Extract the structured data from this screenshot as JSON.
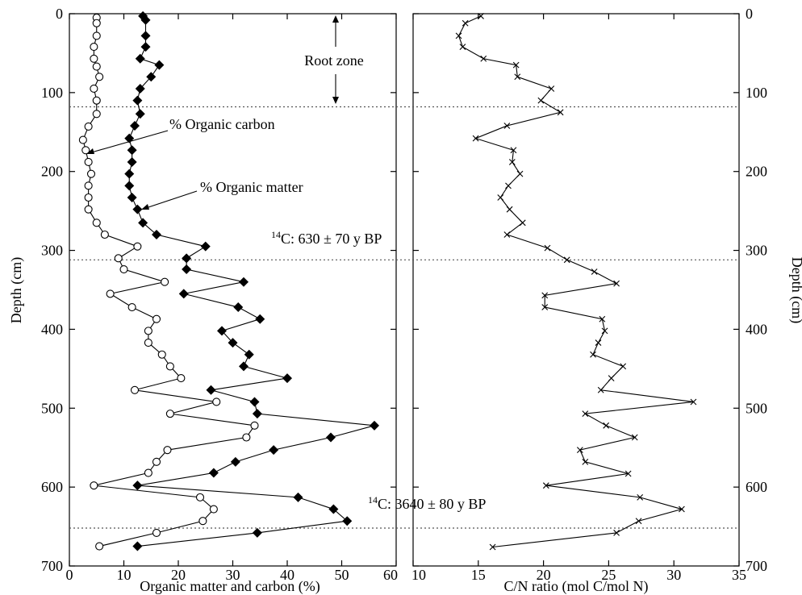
{
  "chart_data": [
    {
      "type": "line",
      "panel": "left",
      "xlabel": "Organic matter and carbon (%)",
      "ylabel": "Depth (cm)",
      "xlim": [
        0,
        60
      ],
      "ylim": [
        0,
        700
      ],
      "y_inverted": true,
      "x_ticks": [
        "0",
        "10",
        "20",
        "30",
        "40",
        "50",
        "60"
      ],
      "y_ticks": [
        "0",
        "100",
        "200",
        "300",
        "400",
        "500",
        "600",
        "700"
      ],
      "grid": false,
      "series": [
        {
          "marker": "open-circle",
          "points": [
            [
              5,
              5
            ],
            [
              5,
              12
            ],
            [
              5,
              28
            ],
            [
              4.5,
              42
            ],
            [
              4.5,
              57
            ],
            [
              5,
              67
            ],
            [
              5.5,
              80
            ],
            [
              4.5,
              95
            ],
            [
              5,
              110
            ],
            [
              5,
              127
            ],
            [
              3.5,
              143
            ],
            [
              2.5,
              160
            ],
            [
              3,
              173
            ],
            [
              3.5,
              188
            ],
            [
              4,
              203
            ],
            [
              3.5,
              218
            ],
            [
              3.5,
              233
            ],
            [
              3.5,
              248
            ],
            [
              5,
              265
            ],
            [
              6.5,
              280
            ],
            [
              12.5,
              295
            ],
            [
              9,
              310
            ],
            [
              10,
              324
            ],
            [
              17.5,
              340
            ],
            [
              7.5,
              355
            ],
            [
              11.5,
              372
            ],
            [
              16,
              387
            ],
            [
              14.5,
              402
            ],
            [
              14.5,
              417
            ],
            [
              17,
              432
            ],
            [
              18.5,
              447
            ],
            [
              20.5,
              462
            ],
            [
              12,
              477
            ],
            [
              27,
              492
            ],
            [
              18.5,
              507
            ],
            [
              34,
              522
            ],
            [
              32.5,
              537
            ],
            [
              18,
              553
            ],
            [
              16,
              568
            ],
            [
              14.5,
              582
            ],
            [
              4.5,
              598
            ],
            [
              24,
              613
            ],
            [
              26.5,
              628
            ],
            [
              24.5,
              643
            ],
            [
              16,
              658
            ],
            [
              5.5,
              675
            ]
          ]
        },
        {
          "marker": "filled-diamond",
          "points": [
            [
              13.5,
              3
            ],
            [
              14,
              8
            ],
            [
              14,
              28
            ],
            [
              14,
              42
            ],
            [
              13,
              57
            ],
            [
              16.5,
              65
            ],
            [
              15,
              80
            ],
            [
              13,
              95
            ],
            [
              12.5,
              110
            ],
            [
              13,
              127
            ],
            [
              12,
              142
            ],
            [
              11,
              158
            ],
            [
              11.5,
              173
            ],
            [
              11.5,
              188
            ],
            [
              11,
              203
            ],
            [
              11,
              218
            ],
            [
              11.5,
              233
            ],
            [
              12.5,
              248
            ],
            [
              13.5,
              265
            ],
            [
              16,
              280
            ],
            [
              25,
              295
            ],
            [
              21.5,
              310
            ],
            [
              21.5,
              324
            ],
            [
              32,
              340
            ],
            [
              21,
              355
            ],
            [
              31,
              372
            ],
            [
              35,
              387
            ],
            [
              28,
              402
            ],
            [
              30,
              417
            ],
            [
              33,
              432
            ],
            [
              32,
              447
            ],
            [
              40,
              462
            ],
            [
              26,
              477
            ],
            [
              34,
              492
            ],
            [
              34.5,
              507
            ],
            [
              56,
              522
            ],
            [
              48,
              537
            ],
            [
              37.5,
              553
            ],
            [
              30.5,
              568
            ],
            [
              26.5,
              582
            ],
            [
              12.5,
              598
            ],
            [
              42,
              613
            ],
            [
              48.5,
              628
            ],
            [
              51,
              643
            ],
            [
              34.5,
              658
            ],
            [
              12.5,
              675
            ]
          ]
        }
      ],
      "annotations": [
        "Root zone",
        "% Organic carbon",
        "% Organic matter",
        "14C: 630 ± 70 y BP",
        "14C: 3640 ± 80 y BP"
      ]
    },
    {
      "type": "line",
      "panel": "right",
      "xlabel": "C/N ratio (mol C/mol N)",
      "ylabel": "Depth (cm)",
      "xlim": [
        10,
        35
      ],
      "ylim": [
        0,
        700
      ],
      "y_inverted": true,
      "x_ticks": [
        "10",
        "15",
        "20",
        "25",
        "30",
        "35"
      ],
      "y_ticks": [
        "0",
        "100",
        "200",
        "300",
        "400",
        "500",
        "600",
        "700"
      ],
      "grid": false,
      "series": [
        {
          "marker": "x",
          "points": [
            [
              15.2,
              3
            ],
            [
              14,
              12
            ],
            [
              13.5,
              28
            ],
            [
              13.8,
              42
            ],
            [
              15.4,
              57
            ],
            [
              17.9,
              65
            ],
            [
              18,
              80
            ],
            [
              20.6,
              95
            ],
            [
              19.8,
              110
            ],
            [
              21.3,
              125
            ],
            [
              17.2,
              142
            ],
            [
              14.8,
              158
            ],
            [
              17.7,
              173
            ],
            [
              17.6,
              188
            ],
            [
              18.2,
              203
            ],
            [
              17.3,
              218
            ],
            [
              16.7,
              233
            ],
            [
              17.4,
              248
            ],
            [
              18.4,
              265
            ],
            [
              17.2,
              280
            ],
            [
              20.3,
              297
            ],
            [
              21.8,
              312
            ],
            [
              23.9,
              327
            ],
            [
              25.6,
              342
            ],
            [
              20.1,
              357
            ],
            [
              20.1,
              372
            ],
            [
              24.5,
              387
            ],
            [
              24.7,
              402
            ],
            [
              24.2,
              417
            ],
            [
              23.8,
              432
            ],
            [
              26.1,
              447
            ],
            [
              25.2,
              462
            ],
            [
              24.4,
              477
            ],
            [
              31.5,
              492
            ],
            [
              23.2,
              507
            ],
            [
              24.8,
              522
            ],
            [
              27,
              537
            ],
            [
              22.8,
              553
            ],
            [
              23.2,
              568
            ],
            [
              26.5,
              583
            ],
            [
              20.2,
              598
            ],
            [
              27.4,
              613
            ],
            [
              30.6,
              628
            ],
            [
              27.3,
              643
            ],
            [
              25.6,
              658
            ],
            [
              16.1,
              676
            ]
          ]
        }
      ]
    }
  ],
  "annotations": {
    "root_zone": "Root zone",
    "organic_carbon": "% Organic carbon",
    "organic_matter": "% Organic matter",
    "c14_630_sup": "14",
    "c14_630": "C: 630 ± 70 y BP",
    "c14_3640_sup": "14",
    "c14_3640": "C: 3640 ± 80 y BP"
  },
  "ref_depths": {
    "root_zone_bottom": 118,
    "c14_630": 312,
    "c14_3640": 652
  }
}
